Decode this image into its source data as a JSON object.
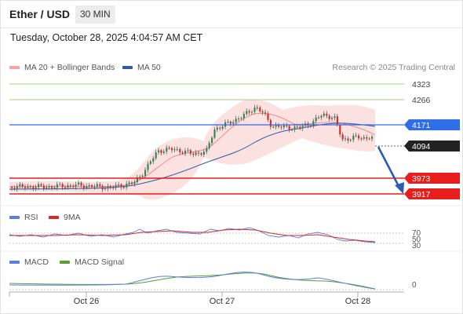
{
  "header": {
    "title": "Ether / USD",
    "timeframe": "30 MIN"
  },
  "datetime": "Tuesday, October 28, 2025 4:04:57 AM CET",
  "legend": {
    "ma20": {
      "label": "MA 20 + Bollinger Bands",
      "color": "#f08a8a"
    },
    "ma50": {
      "label": "MA 50",
      "color": "#2f5aa8"
    }
  },
  "credit": "Research © 2025 Trading Central",
  "levels": [
    {
      "value": "4323",
      "kind": "resistance-thin",
      "color": "#8dbf4f"
    },
    {
      "value": "4266",
      "kind": "resistance-thin",
      "color": "#8dbf4f"
    },
    {
      "value": "4171",
      "kind": "pivot",
      "color": "#2f6ee6"
    },
    {
      "value": "4094",
      "kind": "last-price",
      "color": "#222222"
    },
    {
      "value": "3973",
      "kind": "target",
      "color": "#e61e1e"
    },
    {
      "value": "3917",
      "kind": "target",
      "color": "#e61e1e"
    }
  ],
  "rsi_panel": {
    "legend_rsi": "RSI",
    "legend_9ma": "9MA",
    "rsi_color": "#5b7fe0",
    "ma_color": "#d62a2a",
    "ticks": [
      "70",
      "50",
      "30"
    ]
  },
  "macd_panel": {
    "legend_macd": "MACD",
    "legend_signal": "MACD Signal",
    "macd_color": "#5b7fe0",
    "signal_color": "#5aa02c",
    "ticks": [
      "0"
    ]
  },
  "x_axis": {
    "labels": [
      "Oct 26",
      "Oct 27",
      "Oct 28"
    ]
  }
}
